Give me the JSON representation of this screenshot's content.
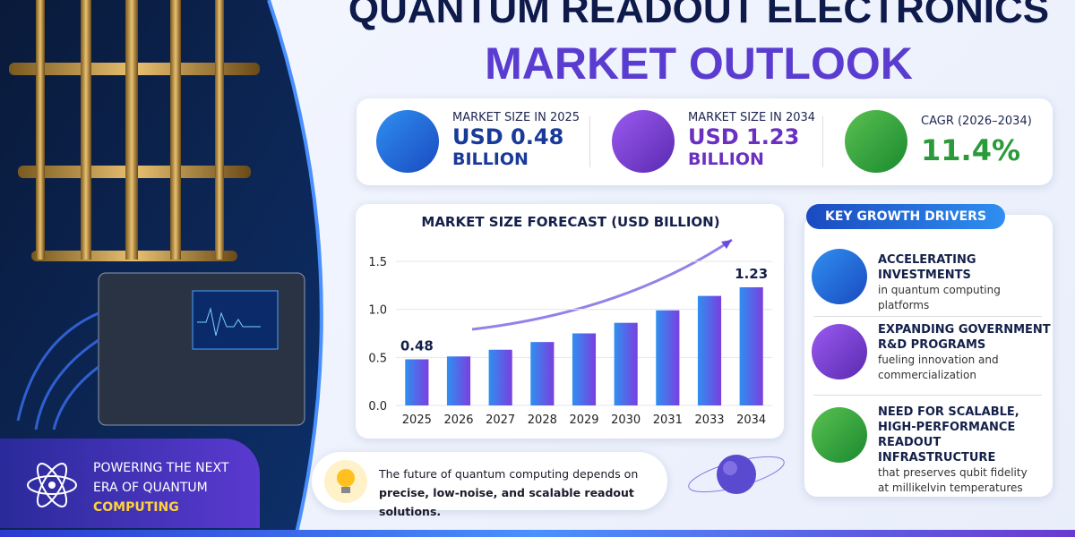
{
  "header": {
    "title": "QUANTUM READOUT ELECTRONICS",
    "subtitle": "MARKET OUTLOOK"
  },
  "stats": [
    {
      "label": "MARKET SIZE IN 2025",
      "value": "USD 0.48",
      "unit": "BILLION"
    },
    {
      "label": "MARKET SIZE IN 2034",
      "value": "USD 1.23",
      "unit": "BILLION"
    },
    {
      "label": "CAGR (2026–2034)",
      "value": "11.4%"
    }
  ],
  "chart_data": {
    "type": "bar",
    "title": "MARKET SIZE FORECAST (USD BILLION)",
    "categories": [
      "2025",
      "2026",
      "2027",
      "2028",
      "2029",
      "2030",
      "2031",
      "2033",
      "2034"
    ],
    "values": [
      0.48,
      0.51,
      0.58,
      0.66,
      0.75,
      0.86,
      0.99,
      1.14,
      1.23
    ],
    "ylim": [
      0,
      1.5
    ],
    "yticks": [
      {
        "value": 0,
        "label": "0.0"
      },
      0.5,
      {
        "value": 1,
        "label": "1.0"
      },
      1.5
    ],
    "color_start": "#2f8ff0",
    "color_end": "#7a3fe0"
  },
  "drivers": {
    "heading": "KEY GROWTH DRIVERS",
    "items": [
      {
        "title": [
          "ACCELERATING INVESTMENTS"
        ],
        "text": [
          "in quantum computing",
          "platforms"
        ]
      },
      {
        "title": [
          "EXPANDING GOVERNMENT",
          "R&D PROGRAMS"
        ],
        "text": [
          "fueling innovation and",
          "commercialization"
        ]
      },
      {
        "title": [
          "NEED FOR SCALABLE,",
          "HIGH-PERFORMANCE",
          "READOUT INFRASTRUCTURE"
        ],
        "text": [
          "that preserves qubit fidelity",
          "at millikelvin temperatures"
        ]
      }
    ]
  },
  "banner": {
    "lines": [
      "POWERING THE NEXT",
      "ERA OF QUANTUM",
      "COMPUTING"
    ]
  },
  "note": {
    "lines": [
      "The future of quantum computing depends on",
      "precise, low-noise, and scalable readout solutions."
    ]
  }
}
